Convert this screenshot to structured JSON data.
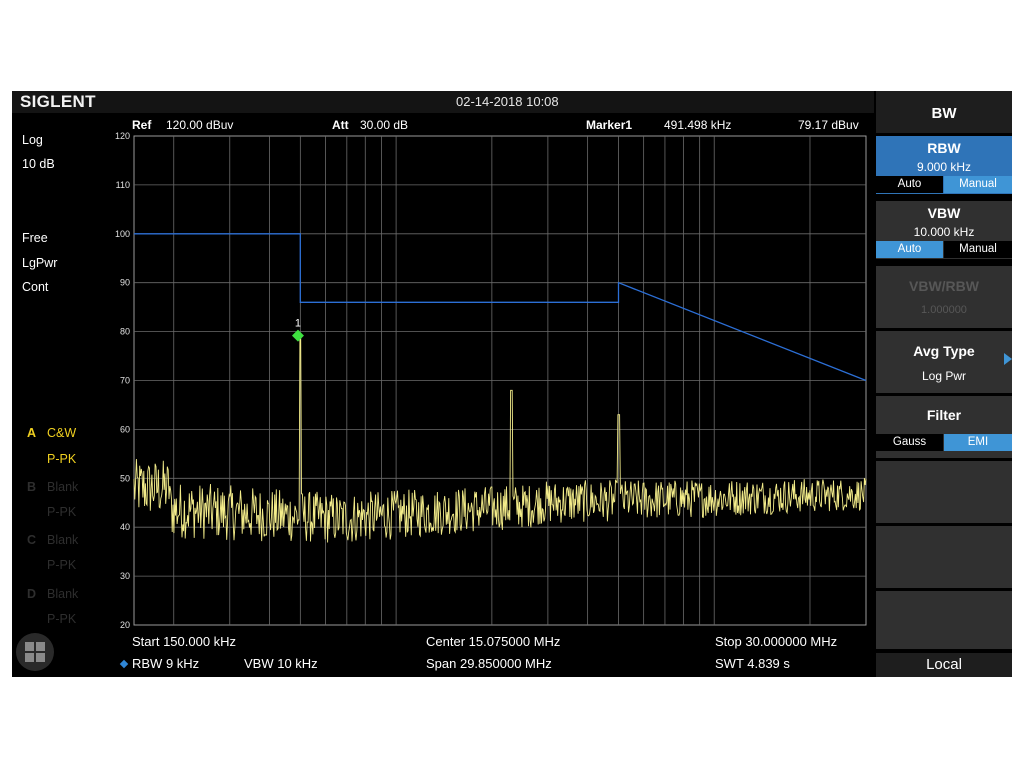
{
  "brand": "SIGLENT",
  "datetime": "02-14-2018 10:08",
  "info": {
    "ref_label": "Ref",
    "ref_value": "120.00 dBuv",
    "att_label": "Att",
    "att_value": "30.00 dB",
    "marker_label": "Marker1",
    "marker_freq": "491.498 kHz",
    "marker_level": "79.17 dBuv"
  },
  "left_panel": {
    "scale_type": "Log",
    "scale_div": "10 dB",
    "trig": "Free",
    "detect_mode": "LgPwr",
    "sweep_mode": "Cont",
    "traces": [
      {
        "letter": "A",
        "type": "C&W",
        "detector": "P-PK",
        "active": true
      },
      {
        "letter": "B",
        "type": "Blank",
        "detector": "P-PK",
        "active": false
      },
      {
        "letter": "C",
        "type": "Blank",
        "detector": "P-PK",
        "active": false
      },
      {
        "letter": "D",
        "type": "Blank",
        "detector": "P-PK",
        "active": false
      }
    ]
  },
  "y_axis": {
    "labels": [
      "120",
      "110",
      "100",
      "90",
      "80",
      "70",
      "60",
      "50",
      "40",
      "30",
      "20"
    ]
  },
  "marker_number": "1",
  "bottom": {
    "start": "Start  150.000 kHz",
    "center": "Center  15.075000 MHz",
    "stop": "Stop  30.000000 MHz",
    "rbw": "RBW  9 kHz",
    "vbw": "VBW  10 kHz",
    "span": "Span   29.850000 MHz",
    "swt": "SWT  4.839 s"
  },
  "menu": {
    "title": "BW",
    "rbw": {
      "label": "RBW",
      "value": "9.000 kHz",
      "auto": "Auto",
      "manual": "Manual",
      "selected": "Manual"
    },
    "vbw": {
      "label": "VBW",
      "value": "10.000 kHz",
      "auto": "Auto",
      "manual": "Manual",
      "selected": "Auto"
    },
    "vbw_rbw": {
      "label": "VBW/RBW",
      "value": "1.000000",
      "enabled": false
    },
    "avg_type": {
      "label": "Avg Type",
      "value": "Log Pwr"
    },
    "filter": {
      "label": "Filter",
      "gauss": "Gauss",
      "emi": "EMI",
      "selected": "EMI"
    },
    "local": "Local"
  },
  "colors": {
    "trace": "#f3ec8a",
    "limit_line": "#2c6fd6",
    "marker": "#3ee040",
    "grid": "#6b6b6b",
    "accent": "#3f95d6",
    "active_trace_label": "#f0d020"
  },
  "chart_data": {
    "type": "line",
    "x_scale": "log",
    "x_range": [
      0.15,
      30
    ],
    "ylim": [
      20,
      120
    ],
    "series": [
      {
        "x": [
          0.15,
          0.17,
          0.2,
          0.25,
          0.3,
          0.35,
          0.4,
          0.45,
          0.5,
          0.55,
          0.6,
          0.7,
          0.8,
          0.9,
          1.0,
          1.2,
          1.4,
          1.5,
          1.7,
          2.0,
          2.3,
          2.5,
          3.0,
          3.5,
          4.0,
          4.5,
          5.0,
          6.0,
          7.0,
          8.0,
          9.0,
          10.0,
          12.0,
          14.0,
          16.0,
          18.0,
          20.0,
          23.0,
          26.0,
          30.0
        ],
        "y": [
          47,
          53,
          46,
          48,
          43,
          42,
          44,
          42,
          79,
          44,
          40,
          38,
          42,
          41,
          40,
          42,
          39,
          45,
          41,
          42,
          68,
          43,
          43,
          45,
          44,
          46,
          63,
          47,
          45,
          50,
          46,
          49,
          48,
          47,
          47,
          46,
          46,
          47,
          46,
          46
        ]
      },
      {
        "x": [
          0.15,
          0.5,
          0.5,
          5.0,
          5.0,
          30.0
        ],
        "y": [
          100,
          100,
          86,
          86,
          90,
          70
        ]
      }
    ],
    "markers": [
      {
        "x": 0.4915,
        "y": 79.17
      }
    ]
  }
}
